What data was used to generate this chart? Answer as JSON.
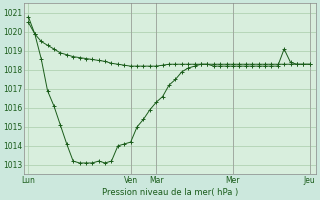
{
  "background_color": "#cce8dd",
  "plot_bg_color": "#d8eedd",
  "grid_color": "#aaccaa",
  "line_color": "#1a5c1a",
  "marker_color": "#1a5c1a",
  "xlabel_text": "Pression niveau de la mer( hPa )",
  "ylim": [
    1012.5,
    1021.5
  ],
  "yticks": [
    1013,
    1014,
    1015,
    1016,
    1017,
    1018,
    1019,
    1020,
    1021
  ],
  "xtick_labels": [
    "Lun",
    "Ven",
    "Mar",
    "Mer",
    "Jeu"
  ],
  "xtick_positions": [
    0,
    96,
    120,
    192,
    264
  ],
  "vline_positions": [
    96,
    120,
    192,
    264
  ],
  "xlim": [
    -4,
    270
  ],
  "series1_x": [
    0,
    6,
    12,
    18,
    24,
    30,
    36,
    42,
    48,
    54,
    60,
    66,
    72,
    78,
    84,
    90,
    96,
    102,
    108,
    114,
    120,
    126,
    132,
    138,
    144,
    150,
    156,
    162,
    168,
    174,
    180,
    186,
    192,
    198,
    204,
    210,
    216,
    222,
    228,
    234,
    240,
    246,
    252,
    258,
    264
  ],
  "series1_y": [
    1020.5,
    1019.9,
    1019.5,
    1019.3,
    1019.1,
    1018.9,
    1018.8,
    1018.7,
    1018.65,
    1018.6,
    1018.55,
    1018.5,
    1018.45,
    1018.35,
    1018.3,
    1018.25,
    1018.2,
    1018.2,
    1018.2,
    1018.2,
    1018.2,
    1018.25,
    1018.3,
    1018.3,
    1018.3,
    1018.3,
    1018.3,
    1018.3,
    1018.3,
    1018.3,
    1018.3,
    1018.3,
    1018.3,
    1018.3,
    1018.3,
    1018.3,
    1018.3,
    1018.3,
    1018.3,
    1018.3,
    1018.3,
    1018.3,
    1018.3,
    1018.3,
    1018.3
  ],
  "series2_x": [
    0,
    6,
    12,
    18,
    24,
    30,
    36,
    42,
    48,
    54,
    60,
    66,
    72,
    78,
    84,
    90,
    96,
    102,
    108,
    114,
    120,
    126,
    132,
    138,
    144,
    150,
    156,
    162,
    168,
    174,
    180,
    186,
    192,
    198,
    204,
    210,
    216,
    222,
    228,
    234,
    240,
    246,
    252,
    258,
    264
  ],
  "series2_y": [
    1020.8,
    1019.9,
    1018.6,
    1016.9,
    1016.1,
    1015.1,
    1014.1,
    1013.2,
    1013.1,
    1013.1,
    1013.1,
    1013.2,
    1013.1,
    1013.2,
    1014.0,
    1014.1,
    1014.2,
    1015.0,
    1015.4,
    1015.9,
    1016.3,
    1016.6,
    1017.2,
    1017.5,
    1017.9,
    1018.1,
    1018.2,
    1018.3,
    1018.3,
    1018.2,
    1018.2,
    1018.2,
    1018.2,
    1018.2,
    1018.2,
    1018.2,
    1018.2,
    1018.2,
    1018.2,
    1018.2,
    1019.1,
    1018.4,
    1018.3,
    1018.3,
    1018.3
  ],
  "figsize": [
    3.2,
    2.0
  ],
  "dpi": 100
}
